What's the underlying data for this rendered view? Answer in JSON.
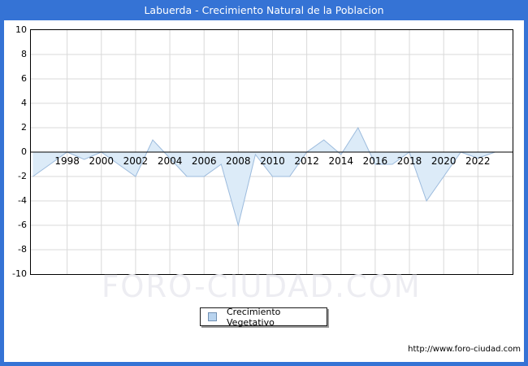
{
  "title_bar": {
    "title": "Labuerda - Crecimiento Natural de la Poblacion"
  },
  "watermark": "FORO-CIUDAD.COM",
  "footer_url": "http://www.foro-ciudad.com",
  "colors": {
    "frame_blue": "#3573d5",
    "plot_border": "#000000",
    "grid": "#d9d9d9",
    "zero_line": "#000000",
    "series_line": "#9cbbdd",
    "series_fill": "#dcebf8",
    "watermark": "#ededf2",
    "legend_swatch_fill": "#b9d4ef",
    "legend_swatch_border": "#7291b4",
    "title_text": "#ffffff"
  },
  "chart_data": {
    "type": "area",
    "title": "Labuerda - Crecimiento Natural de la Poblacion",
    "xlabel": "",
    "ylabel": "",
    "x": [
      1996,
      1997,
      1998,
      1999,
      2000,
      2001,
      2002,
      2003,
      2004,
      2005,
      2006,
      2007,
      2008,
      2009,
      2010,
      2011,
      2012,
      2013,
      2014,
      2015,
      2016,
      2017,
      2018,
      2019,
      2020,
      2021,
      2022,
      2023
    ],
    "values": [
      -2,
      -1,
      0,
      -0.6,
      0,
      -1,
      -2,
      1,
      -0.5,
      -2,
      -2,
      -1,
      -6,
      -0.2,
      -2,
      -2,
      0,
      1,
      -0.2,
      2,
      -1,
      -1,
      0,
      -4,
      -2,
      0,
      -0.5,
      0
    ],
    "series_name": "Crecimiento Vegetativo",
    "legend": [
      "Crecimiento Vegetativo"
    ],
    "legend_position": "bottom-center",
    "ylim": [
      -10,
      10
    ],
    "ytick_step": 2,
    "yticks": [
      10,
      8,
      6,
      4,
      2,
      0,
      -2,
      -4,
      -6,
      -8,
      -10
    ],
    "xticks": [
      1998,
      2000,
      2002,
      2004,
      2006,
      2008,
      2010,
      2012,
      2014,
      2016,
      2018,
      2020,
      2022
    ],
    "grid": true,
    "baseline": 0
  }
}
